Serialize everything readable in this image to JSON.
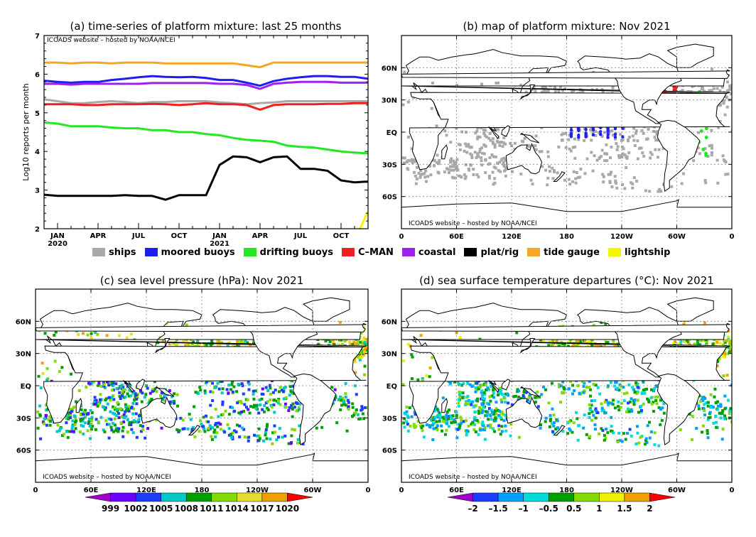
{
  "panels": {
    "a": {
      "title": "(a) time-series of platform mixture: last 25 months",
      "credit": "ICOADS website – hosted by NOAA/NCEI",
      "ylabel": "Log10 reports per month",
      "yticks": [
        "2",
        "3",
        "4",
        "5",
        "6",
        "7"
      ],
      "xticks": [
        {
          "label": "JAN",
          "sub": "2020",
          "month": 2
        },
        {
          "label": "APR",
          "sub": "",
          "month": 5
        },
        {
          "label": "JUL",
          "sub": "",
          "month": 8
        },
        {
          "label": "OCT",
          "sub": "",
          "month": 11
        },
        {
          "label": "JAN",
          "sub": "2021",
          "month": 14
        },
        {
          "label": "APR",
          "sub": "",
          "month": 17
        },
        {
          "label": "JUL",
          "sub": "",
          "month": 20
        },
        {
          "label": "OCT",
          "sub": "",
          "month": 23
        }
      ]
    },
    "b": {
      "title": "(b) map of platform mixture: Nov 2021",
      "credit": "ICOADS website – hosted by NOAA/NCEI"
    },
    "c": {
      "title": "(c) sea level pressure (hPa): Nov 2021",
      "credit": "ICOADS website – hosted by NOAA/NCEI"
    },
    "d": {
      "title": "(d) sea surface temperature departures (°C): Nov 2021",
      "credit": "ICOADS website – hosted by NOAA/NCEI"
    }
  },
  "map_axes": {
    "lat": [
      "60N",
      "30N",
      "EQ",
      "30S",
      "60S"
    ],
    "lon": [
      "0",
      "60E",
      "120E",
      "180",
      "120W",
      "60W",
      "0"
    ]
  },
  "legend": [
    {
      "label": "ships",
      "color": "#a9a9a9"
    },
    {
      "label": "moored buoys",
      "color": "#1e1ef0"
    },
    {
      "label": "drifting buoys",
      "color": "#22e822"
    },
    {
      "label": "C–MAN",
      "color": "#ee2020"
    },
    {
      "label": "coastal",
      "color": "#a020f0"
    },
    {
      "label": "plat/rig",
      "color": "#000000"
    },
    {
      "label": "tide gauge",
      "color": "#f5a623"
    },
    {
      "label": "lightship",
      "color": "#f5f500"
    }
  ],
  "colorbars": {
    "slp": {
      "labels": [
        "999",
        "1002",
        "1005",
        "1008",
        "1011",
        "1014",
        "1017",
        "1020"
      ],
      "colors": [
        "#a000c8",
        "#6e00ff",
        "#1e3cff",
        "#00c8c8",
        "#00a000",
        "#82dc00",
        "#e6dc32",
        "#f0a000",
        "#ff0000"
      ]
    },
    "sst": {
      "labels": [
        "–2",
        "–1.5",
        "–1",
        "–0.5",
        "0.5",
        "1",
        "1.5",
        "2"
      ],
      "colors": [
        "#a000c8",
        "#1e3cff",
        "#00a0ff",
        "#00dcdc",
        "#00a000",
        "#82dc00",
        "#f0f000",
        "#f0a000",
        "#ff0000"
      ]
    }
  },
  "chart_data": {
    "type": "line",
    "title": "(a) time-series of platform mixture: last 25 months",
    "ylabel": "Log10 reports per month",
    "ylim": [
      2,
      7
    ],
    "x_months": [
      "2019-11",
      "2019-12",
      "2020-01",
      "2020-02",
      "2020-03",
      "2020-04",
      "2020-05",
      "2020-06",
      "2020-07",
      "2020-08",
      "2020-09",
      "2020-10",
      "2020-11",
      "2020-12",
      "2021-01",
      "2021-02",
      "2021-03",
      "2021-04",
      "2021-05",
      "2021-06",
      "2021-07",
      "2021-08",
      "2021-09",
      "2021-10",
      "2021-11"
    ],
    "series": [
      {
        "name": "tide gauge",
        "color": "#f5a623",
        "values": [
          6.3,
          6.3,
          6.28,
          6.3,
          6.3,
          6.28,
          6.3,
          6.3,
          6.3,
          6.28,
          6.28,
          6.28,
          6.28,
          6.28,
          6.28,
          6.23,
          6.18,
          6.3,
          6.3,
          6.3,
          6.3,
          6.3,
          6.3,
          6.3,
          6.3
        ]
      },
      {
        "name": "moored buoys",
        "color": "#1e1ef0",
        "values": [
          5.83,
          5.8,
          5.78,
          5.8,
          5.8,
          5.85,
          5.88,
          5.92,
          5.95,
          5.93,
          5.92,
          5.93,
          5.9,
          5.85,
          5.85,
          5.78,
          5.7,
          5.82,
          5.88,
          5.92,
          5.95,
          5.95,
          5.93,
          5.93,
          5.88
        ]
      },
      {
        "name": "coastal",
        "color": "#a020f0",
        "values": [
          5.75,
          5.75,
          5.73,
          5.75,
          5.75,
          5.75,
          5.75,
          5.75,
          5.77,
          5.77,
          5.77,
          5.77,
          5.77,
          5.75,
          5.75,
          5.72,
          5.62,
          5.75,
          5.78,
          5.8,
          5.8,
          5.8,
          5.78,
          5.78,
          5.78
        ]
      },
      {
        "name": "ships",
        "color": "#a9a9a9",
        "values": [
          5.35,
          5.3,
          5.25,
          5.25,
          5.28,
          5.3,
          5.28,
          5.25,
          5.28,
          5.28,
          5.3,
          5.3,
          5.3,
          5.27,
          5.25,
          5.22,
          5.25,
          5.27,
          5.3,
          5.3,
          5.3,
          5.3,
          5.3,
          5.3,
          5.3
        ]
      },
      {
        "name": "C–MAN",
        "color": "#ee2020",
        "values": [
          5.22,
          5.22,
          5.22,
          5.2,
          5.2,
          5.22,
          5.22,
          5.22,
          5.23,
          5.22,
          5.2,
          5.22,
          5.25,
          5.22,
          5.22,
          5.2,
          5.08,
          5.2,
          5.22,
          5.22,
          5.22,
          5.23,
          5.23,
          5.25,
          5.25
        ]
      },
      {
        "name": "drifting buoys",
        "color": "#22e822",
        "values": [
          4.75,
          4.72,
          4.65,
          4.65,
          4.65,
          4.62,
          4.6,
          4.6,
          4.55,
          4.55,
          4.5,
          4.5,
          4.45,
          4.42,
          4.35,
          4.3,
          4.28,
          4.25,
          4.15,
          4.12,
          4.1,
          4.05,
          4.0,
          3.97,
          3.95
        ]
      },
      {
        "name": "plat/rig",
        "color": "#000000",
        "values": [
          2.88,
          2.85,
          2.85,
          2.85,
          2.85,
          2.85,
          2.87,
          2.85,
          2.85,
          2.75,
          2.87,
          2.87,
          2.87,
          3.65,
          3.87,
          3.85,
          3.72,
          3.85,
          3.87,
          3.55,
          3.55,
          3.5,
          3.25,
          3.2,
          3.22
        ]
      },
      {
        "name": "lightship",
        "color": "#f5f500",
        "values": [
          null,
          null,
          null,
          null,
          null,
          null,
          null,
          null,
          null,
          null,
          null,
          null,
          null,
          null,
          null,
          null,
          null,
          null,
          null,
          null,
          null,
          null,
          null,
          1.7,
          2.45
        ]
      }
    ]
  }
}
